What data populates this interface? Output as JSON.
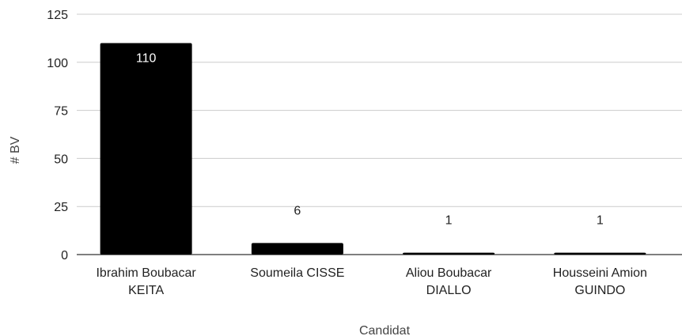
{
  "chart_data": {
    "type": "bar",
    "categories": [
      [
        "Ibrahim Boubacar",
        "KEITA"
      ],
      [
        "Soumeila CISSE"
      ],
      [
        "Aliou Boubacar",
        "DIALLO"
      ],
      [
        "Housseini Amion",
        "GUINDO"
      ]
    ],
    "values": [
      110,
      6,
      1,
      1
    ],
    "data_labels": [
      "110",
      "6",
      "1",
      "1"
    ],
    "title": "",
    "xlabel": "Candidat",
    "ylabel": "# BV",
    "ylim": [
      0,
      125
    ],
    "yticks": [
      "0",
      "25",
      "50",
      "75",
      "100",
      "125"
    ],
    "grid": true,
    "legend": "none",
    "colors": {
      "bar": "#000000",
      "grid": "#cccccc",
      "axis": "#333333",
      "label_inside": "#ffffff",
      "label_outside": "#222222"
    }
  }
}
